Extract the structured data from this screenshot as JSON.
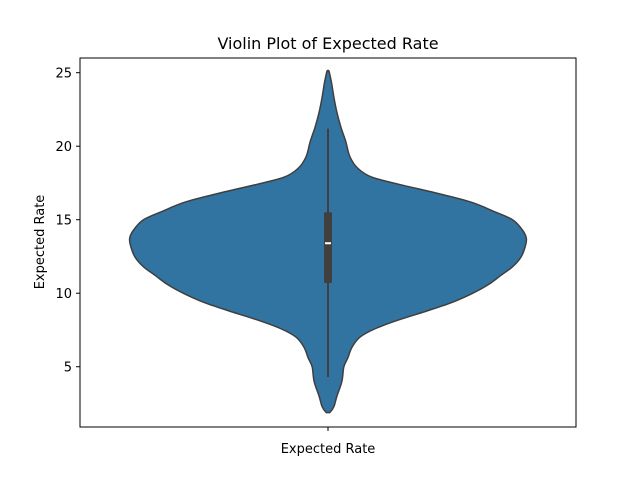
{
  "chart_data": {
    "type": "violin",
    "title": "Violin Plot of Expected Rate",
    "xlabel": "",
    "ylabel": "Expected Rate",
    "categories": [
      "Expected Rate"
    ],
    "ylim": [
      0.9,
      26.0
    ],
    "yticks": [
      5,
      10,
      15,
      20,
      25
    ],
    "grid": false,
    "legend": "none",
    "colors": {
      "fill": "#3274a1",
      "edge": "#3f3f3f",
      "box": "#3f3f3f",
      "median": "#ffffff"
    },
    "series": [
      {
        "category": "Expected Rate",
        "min": 4.3,
        "q1": 10.7,
        "median": 13.4,
        "q3": 15.5,
        "max": 21.2,
        "density": [
          {
            "y": 1.9,
            "w": 0.01
          },
          {
            "y": 2.3,
            "w": 0.03
          },
          {
            "y": 3.0,
            "w": 0.045
          },
          {
            "y": 4.0,
            "w": 0.07
          },
          {
            "y": 5.0,
            "w": 0.08
          },
          {
            "y": 5.6,
            "w": 0.1
          },
          {
            "y": 6.3,
            "w": 0.12
          },
          {
            "y": 7.0,
            "w": 0.16
          },
          {
            "y": 7.6,
            "w": 0.24
          },
          {
            "y": 8.2,
            "w": 0.36
          },
          {
            "y": 8.8,
            "w": 0.5
          },
          {
            "y": 9.4,
            "w": 0.63
          },
          {
            "y": 10.0,
            "w": 0.73
          },
          {
            "y": 10.6,
            "w": 0.81
          },
          {
            "y": 11.2,
            "w": 0.87
          },
          {
            "y": 11.8,
            "w": 0.93
          },
          {
            "y": 12.4,
            "w": 0.97
          },
          {
            "y": 13.0,
            "w": 0.99
          },
          {
            "y": 13.7,
            "w": 1.0
          },
          {
            "y": 14.3,
            "w": 0.98
          },
          {
            "y": 15.0,
            "w": 0.93
          },
          {
            "y": 15.6,
            "w": 0.83
          },
          {
            "y": 16.2,
            "w": 0.72
          },
          {
            "y": 16.8,
            "w": 0.55
          },
          {
            "y": 17.4,
            "w": 0.36
          },
          {
            "y": 17.9,
            "w": 0.22
          },
          {
            "y": 18.5,
            "w": 0.15
          },
          {
            "y": 19.3,
            "w": 0.11
          },
          {
            "y": 20.3,
            "w": 0.09
          },
          {
            "y": 21.3,
            "w": 0.065
          },
          {
            "y": 22.3,
            "w": 0.045
          },
          {
            "y": 23.3,
            "w": 0.03
          },
          {
            "y": 24.3,
            "w": 0.018
          },
          {
            "y": 25.1,
            "w": 0.005
          }
        ]
      }
    ]
  }
}
